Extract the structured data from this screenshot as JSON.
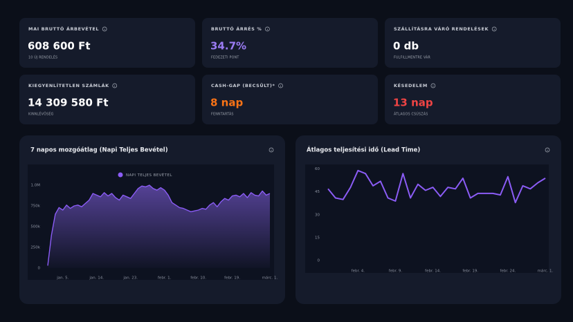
{
  "kpis": [
    {
      "label": "MAI BRUTTÓ ÁRBEVÉTEL",
      "value": "608 600 Ft",
      "sub": "10 ÚJ RENDELÉS",
      "color": "#ffffff"
    },
    {
      "label": "BRUTTÓ ÁRRÉS %",
      "value": "34.7%",
      "sub": "FEDEZETI PONT",
      "color": "#9b7cf4"
    },
    {
      "label": "SZÁLLÍTÁSRA VÁRÓ RENDELÉSEK",
      "value": "0 db",
      "sub": "FULFILLMENTRE VÁR",
      "color": "#ffffff"
    },
    {
      "label": "KIEGYENLÍTETLEN SZÁMLÁK",
      "value": "14 309 580 Ft",
      "sub": "KINNLÉVŐSÉG",
      "color": "#ffffff"
    },
    {
      "label": "CASH-GAP (BECSÜLT)*",
      "value": "8 nap",
      "sub": "FENNTARTÁS",
      "color": "#f97316"
    },
    {
      "label": "KÉSEDELEM",
      "value": "13 nap",
      "sub": "ÁTLAGOS CSÚSZÁS",
      "color": "#ef4444"
    }
  ],
  "chart_data": [
    {
      "type": "area",
      "title": "7 napos mozgóátlag (Napi Teljes Bevétel)",
      "categories": [
        null,
        null,
        null,
        null,
        "jan. 5.",
        null,
        null,
        null,
        null,
        null,
        null,
        null,
        null,
        "jan. 14.",
        null,
        null,
        null,
        null,
        null,
        null,
        null,
        null,
        "jan. 23.",
        null,
        null,
        null,
        null,
        null,
        null,
        null,
        null,
        "febr. 1.",
        null,
        null,
        null,
        null,
        null,
        null,
        null,
        null,
        "febr. 10.",
        null,
        null,
        null,
        null,
        null,
        null,
        null,
        null,
        "febr. 19.",
        null,
        null,
        null,
        null,
        null,
        null,
        null,
        null,
        null,
        "márc. 1."
      ],
      "series": [
        {
          "name": "NAPI TELJES BEVÉTEL",
          "color": "#8b5cf6",
          "values": [
            30000,
            400000,
            650000,
            730000,
            700000,
            760000,
            720000,
            750000,
            760000,
            740000,
            780000,
            820000,
            900000,
            880000,
            860000,
            910000,
            870000,
            900000,
            850000,
            820000,
            880000,
            860000,
            840000,
            900000,
            960000,
            990000,
            980000,
            1000000,
            960000,
            940000,
            970000,
            940000,
            880000,
            790000,
            760000,
            730000,
            720000,
            700000,
            680000,
            690000,
            700000,
            720000,
            710000,
            760000,
            790000,
            740000,
            800000,
            840000,
            820000,
            870000,
            880000,
            860000,
            900000,
            850000,
            910000,
            880000,
            870000,
            930000,
            880000,
            900000
          ]
        }
      ],
      "ylim": [
        0,
        1250000
      ],
      "yticks": [
        0,
        {
          "value": 250000,
          "label": "250k"
        },
        {
          "value": 500000,
          "label": "500k"
        },
        {
          "value": 750000,
          "label": "750k"
        },
        {
          "value": 1000000,
          "label": "1.0M"
        }
      ],
      "grid": false,
      "legend": "top"
    },
    {
      "type": "line",
      "title": "Átlagos teljesítési idő (Lead Time)",
      "categories": [
        null,
        null,
        null,
        null,
        "febr. 4.",
        null,
        null,
        null,
        null,
        "febr. 9.",
        null,
        null,
        null,
        null,
        "febr. 14.",
        null,
        null,
        null,
        null,
        "febr. 19.",
        null,
        null,
        null,
        null,
        "febr. 24.",
        null,
        null,
        null,
        null,
        "márc. 1."
      ],
      "values": [
        47,
        41,
        40,
        48,
        59,
        57,
        49,
        52,
        41,
        39,
        57,
        41,
        50,
        46,
        48,
        42,
        48,
        47,
        54,
        41,
        44,
        44,
        44,
        43,
        55,
        38,
        49,
        47,
        51,
        54
      ],
      "color": "#8b5cf6",
      "ylim": [
        0,
        63
      ],
      "yticks": [
        0,
        15,
        30,
        45,
        60
      ],
      "grid": false
    }
  ]
}
